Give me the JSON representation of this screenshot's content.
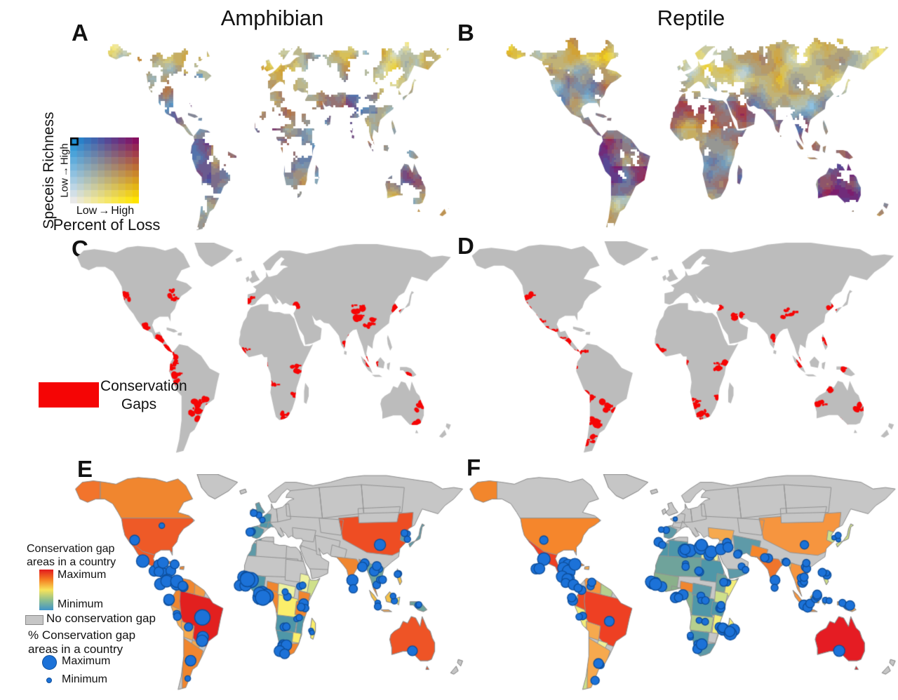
{
  "figure": {
    "columns": [
      {
        "title": "Amphibian"
      },
      {
        "title": "Reptile"
      }
    ],
    "panels": [
      {
        "label": "A",
        "taxon": "Amphibian",
        "kind": "bivariate species richness vs percent of loss map"
      },
      {
        "label": "B",
        "taxon": "Reptile",
        "kind": "bivariate species richness vs percent of loss map"
      },
      {
        "label": "C",
        "taxon": "Amphibian",
        "kind": "conservation gaps map"
      },
      {
        "label": "D",
        "taxon": "Reptile",
        "kind": "conservation gaps map"
      },
      {
        "label": "E",
        "taxon": "Amphibian",
        "kind": "country conservation gap choropleth with percent circles"
      },
      {
        "label": "F",
        "taxon": "Reptile",
        "kind": "country conservation gap choropleth with percent circles"
      }
    ]
  },
  "bivariate_legend": {
    "y_title": "Speceis Richness",
    "y_low": "Low",
    "y_high": "High",
    "x_low": "Low",
    "x_high": "High",
    "arrow": "→",
    "x_title": "Percent of Loss",
    "grid_steps": 10,
    "corner_colors": {
      "low_richness_low_loss": "#e9e9e9",
      "high_richness_low_loss": "#1e8fd5",
      "low_richness_high_loss": "#ffe400",
      "high_richness_high_loss": "#871060"
    }
  },
  "gaps_legend": {
    "color": "#f50505",
    "line1": "Conservation",
    "line2": "Gaps"
  },
  "country_legend": {
    "gradient_title1": "Conservation gap",
    "gradient_title2": "areas in a country",
    "max_label": "Maximum",
    "min_label": "Minimum",
    "gradient_colors": [
      "#e21a1e",
      "#f57e21",
      "#f8e35a",
      "#8fbf8e",
      "#3f93c9"
    ],
    "no_gap_label": "No conservation gap",
    "no_gap_color": "#c6c6c6",
    "pct_title1": "% Conservation gap",
    "pct_title2": "areas in a country",
    "pct_max_label": "Maximum",
    "pct_min_label": "Minimum",
    "circle_color": "#1c72d8",
    "circle_stroke": "#0d4e9b"
  },
  "map_style": {
    "land_gray": "#bcbcbc",
    "land_gray_row3": "#c6c6c6",
    "border_gray": "#929292",
    "coast_gray": "#828282",
    "gap_red": "#f50505"
  },
  "country_fills": {
    "e": {
      "alaska": "#f2742c",
      "canada": "#f0862f",
      "usa": "#ee5a27",
      "mexico": "#ee5a27",
      "central_america": "#f0862f",
      "cuba": "#f0862f",
      "hispaniola": "#f0862f",
      "colombia": "#f0862f",
      "venezuela": "#f0862f",
      "guyanas": "#f29a44",
      "ecuador": "#f0862f",
      "peru": "#f6a94e",
      "brazil": "#e2201f",
      "bolivia": "#f6a94e",
      "paraguay": "#f6a94e",
      "argentina": "#f0862f",
      "chile": null,
      "uk": "#5e9aa8",
      "iberia": "#4f97a8",
      "france": "#4f97a8",
      "italy": "#5e9aa8",
      "turkey": null,
      "morocco": "#5e9aa8",
      "algeria_libya": null,
      "egypt": null,
      "sahel": null,
      "sudan": null,
      "west_africa": "#4f97a8",
      "ghana_benin": "#4f97a8",
      "nigeria": "#f0862f",
      "cameroon_gabon": "#f0862f",
      "car": "#eef2a0",
      "drc": "#fbee6a",
      "ethiopia": "#eef2a0",
      "somalia": "#cfe08a",
      "kenya": "#f0862f",
      "tanzania": "#f0862f",
      "angola_zambia": "#4f97a8",
      "zimbabwe": "#fbee6a",
      "mozambique": "#4f97a8",
      "namibia_botswana": "#4f97a8",
      "south_africa": "#f0862f",
      "sa_west_coast": null,
      "madagascar": "#fbee6a",
      "arabia": null,
      "yemen_oman": null,
      "iran": null,
      "pakistan": null,
      "india": "#f0862f",
      "china": "#ee4d23",
      "mongolia": null,
      "korea": "#5e9aa8",
      "japan": "#5e9aa8",
      "myanmar": "#f0862f",
      "thailand_vietnam": "#6fa39b",
      "malaysia": "#f0862f",
      "sumatra": "#f3c14b",
      "java": "#f6a94e",
      "borneo": "#f3c14b",
      "sulawesi": "#fbee6a",
      "philippines": "#f3c14b",
      "new_guinea": "#6fa39b",
      "australia": "#ee5426",
      "sri_lanka": "#f0862f"
    },
    "f": {
      "alaska": "#f2862c",
      "canada": null,
      "usa": "#f5862c",
      "mexico": "#ee4023",
      "central_america": "#ee5226",
      "cuba": "#f0862f",
      "hispaniola": "#f6a94e",
      "colombia": "#ee4a23",
      "venezuela": "#f6953f",
      "guyanas": "#b5cf8e",
      "ecuador": "#cfe08a",
      "peru": "#f3ee79",
      "brazil": "#ee4023",
      "bolivia": "#f6a94e",
      "paraguay": "#eff09a",
      "argentina": "#f6a94e",
      "chile": "#cfe08a",
      "uk": null,
      "iberia": "#5e9aa8",
      "france": null,
      "italy": null,
      "turkey": "#f6a94e",
      "morocco": "#4f97a8",
      "algeria_libya": "#4f97a8",
      "egypt": "#eff09a",
      "sahel": "#6fa39b",
      "sudan": "#4f97a8",
      "west_africa": "#8ab08a",
      "ghana_benin": "#8ab08a",
      "nigeria": "#f0862f",
      "cameroon_gabon": "#8ab08a",
      "car": "#5e9aa8",
      "drc": "#4f97a8",
      "ethiopia": "#6fa39b",
      "somalia": "#f3ee79",
      "kenya": "#cfe08a",
      "tanzania": "#4f97a8",
      "angola_zambia": "#b5cf8e",
      "zimbabwe": null,
      "mozambique": "#f3ee79",
      "namibia_botswana": "#4f97a8",
      "south_africa": "#5e9aa8",
      "sa_west_coast": "#f0862f",
      "madagascar": "#f3ee79",
      "arabia": null,
      "yemen_oman": "#5e9aa8",
      "iran": "#5e9aa8",
      "pakistan": "#f5862c",
      "india": "#f0752b",
      "china": "#f6953f",
      "mongolia": null,
      "korea": "#cfe08a",
      "japan": "#cfe08a",
      "myanmar": "#f3ee79",
      "thailand_vietnam": "#f6953f",
      "malaysia": "#f6953f",
      "sumatra": "#f6953f",
      "java": "#f6953f",
      "borneo": "#f3c14b",
      "sulawesi": "#f3ee79",
      "philippines": "#cfe08a",
      "new_guinea": "#f6a94e",
      "australia": "#e51c23",
      "sri_lanka": "#f6953f"
    }
  }
}
